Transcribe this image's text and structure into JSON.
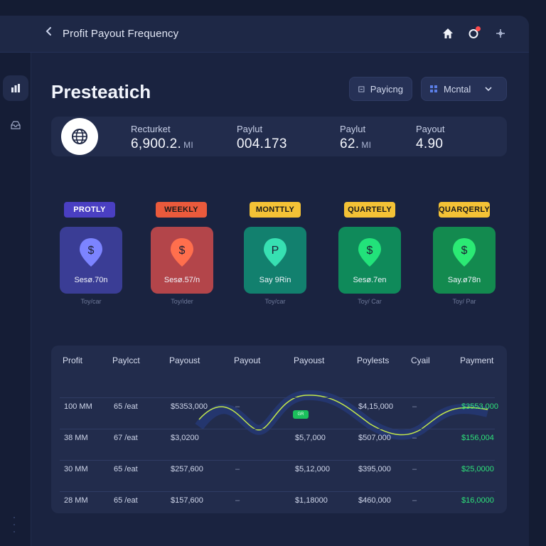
{
  "header": {
    "title": "Profit Payout Frequency",
    "back_icon": "chevron-left-icon",
    "icons": [
      "home-icon",
      "notification-icon",
      "move-icon"
    ]
  },
  "sidebar": {
    "items": [
      {
        "icon": "chart-bars-icon",
        "active": true
      },
      {
        "icon": "inbox-icon",
        "active": false
      }
    ]
  },
  "page": {
    "title": "Presteatich",
    "paying_button": "Payicng",
    "mental_dropdown": "Mcntal"
  },
  "stats": [
    {
      "label": "Recturket",
      "value": "6,900.2.",
      "unit": "MI"
    },
    {
      "label": "Paylut",
      "value": "004.173",
      "unit": ""
    },
    {
      "label": "Paylut",
      "value": "62.",
      "unit": "MI"
    },
    {
      "label": "Payout",
      "value": "4.90",
      "unit": ""
    }
  ],
  "frequencies": [
    {
      "tag": "PROTLY",
      "tag_bg": "#4a3fc2",
      "tag_color": "#ffffff",
      "card_color": "#3a3d95",
      "pin_color": "#7c84ff",
      "glyph": "$",
      "amount": "Sesø.70n",
      "caption": "Toy/car"
    },
    {
      "tag": "WEEKLY",
      "tag_bg": "#ea5a3c",
      "tag_color": "#1a1a1a",
      "card_color": "#b3454a",
      "pin_color": "#ff6f4d",
      "glyph": "$",
      "amount": "Sesø.57/n",
      "caption": "Toy/ider"
    },
    {
      "tag": "MONTTLY",
      "tag_bg": "#f4c236",
      "tag_color": "#1a1a1a",
      "card_color": "#12806e",
      "pin_color": "#37e0b2",
      "glyph": "P",
      "amount": "Say 9Rin",
      "caption": "Toy/car"
    },
    {
      "tag": "QUARTELY",
      "tag_bg": "#f4c236",
      "tag_color": "#1a1a1a",
      "card_color": "#0f8a5a",
      "pin_color": "#22e27a",
      "glyph": "$",
      "amount": "Sesø.7en",
      "caption": "Toy/ Car"
    },
    {
      "tag": "QUARQERLY",
      "tag_bg": "#f4c236",
      "tag_color": "#1a1a1a",
      "card_color": "#138a4f",
      "pin_color": "#2bea74",
      "glyph": "$",
      "amount": "Say.ø78n",
      "caption": "Toy/ Par"
    }
  ],
  "table": {
    "headers": [
      "Profit",
      "Paylcct",
      "Payoust",
      "Payout",
      "Payoust",
      "Poylests",
      "Cyail",
      "Payment"
    ],
    "rows": [
      [
        "100 MM",
        "65 /eat",
        "$5353,000",
        "–",
        "",
        "$4,15,000",
        "–",
        "$3553,000"
      ],
      [
        "38 MM",
        "67 /eat",
        "$3,0200",
        "",
        "$5,7,000",
        "$507,000",
        "–",
        "$156,004"
      ],
      [
        "30 MM",
        "65 /eat",
        "$257,600",
        "–",
        "$5,12,000",
        "$395,000",
        "–",
        "$25,0000"
      ],
      [
        "28 MM",
        "65 /eat",
        "$157,600",
        "–",
        "$1,18000",
        "$460,000",
        "–",
        "$16,0000"
      ]
    ],
    "row_green_cols": [
      7
    ],
    "chart_tag": "GR"
  }
}
